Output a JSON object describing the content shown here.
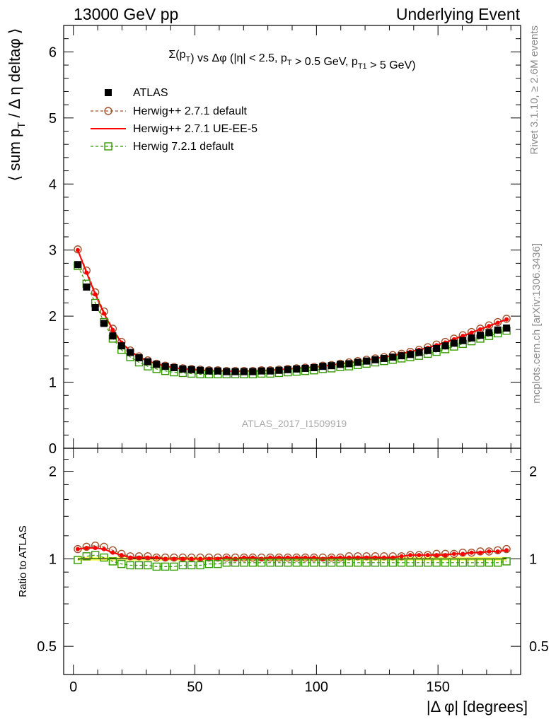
{
  "header": {
    "left": "13000 GeV pp",
    "right": "Underlying Event"
  },
  "side_labels": {
    "rivet": "Rivet 3.1.10, ≥ 2.6M events",
    "mcplots": "mcplots.cern.ch [arXiv:1306.3436]"
  },
  "watermark": "ATLAS_2017_I1509919",
  "colors": {
    "atlas": "#000000",
    "herwigpp_default": "#a0522d",
    "herwigpp_ueee5": "#ff0000",
    "herwig7_default": "#339900",
    "band": "#ffff66"
  },
  "chart_data": [
    {
      "type": "line",
      "panel": "main",
      "title": "Σ(p_T) vs Δφ (|η| < 2.5, p_T > 0.5 GeV, p_T1 > 5 GeV)",
      "xlabel": "|Δ φ| [degrees]",
      "ylabel": "⟨ sum p_T / Δ η deltaφ ⟩",
      "xlim": [
        -4,
        184
      ],
      "ylim": [
        0,
        6.4
      ],
      "yticks": [
        0,
        1,
        2,
        3,
        4,
        5,
        6
      ],
      "xticks": [
        0,
        50,
        100,
        150
      ],
      "legend_position": "top-left",
      "x": [
        1.8,
        5.4,
        9.0,
        12.6,
        16.2,
        19.8,
        23.4,
        27.0,
        30.6,
        34.2,
        37.8,
        41.4,
        45.0,
        48.6,
        52.2,
        55.8,
        59.4,
        63.0,
        66.6,
        70.2,
        73.8,
        77.4,
        81.0,
        84.6,
        88.2,
        91.8,
        95.4,
        99.0,
        102.6,
        106.2,
        109.8,
        113.4,
        117.0,
        120.6,
        124.2,
        127.8,
        131.4,
        135.0,
        138.6,
        142.2,
        145.8,
        149.4,
        153.0,
        156.6,
        160.2,
        163.8,
        167.4,
        171.0,
        174.6,
        178.2
      ],
      "series": [
        {
          "name": "ATLAS",
          "style": "filled-square",
          "values": [
            2.78,
            2.44,
            2.13,
            1.89,
            1.7,
            1.55,
            1.45,
            1.37,
            1.31,
            1.27,
            1.24,
            1.22,
            1.2,
            1.19,
            1.18,
            1.17,
            1.17,
            1.16,
            1.16,
            1.16,
            1.16,
            1.17,
            1.17,
            1.18,
            1.19,
            1.2,
            1.21,
            1.22,
            1.24,
            1.25,
            1.27,
            1.28,
            1.3,
            1.32,
            1.34,
            1.36,
            1.38,
            1.4,
            1.42,
            1.45,
            1.48,
            1.51,
            1.55,
            1.59,
            1.63,
            1.67,
            1.71,
            1.75,
            1.79,
            1.82
          ]
        },
        {
          "name": "Herwig++ 2.7.1 default",
          "style": "dashed-open-circle",
          "values": [
            3.01,
            2.69,
            2.36,
            2.07,
            1.81,
            1.61,
            1.48,
            1.39,
            1.33,
            1.28,
            1.25,
            1.23,
            1.21,
            1.2,
            1.19,
            1.18,
            1.18,
            1.17,
            1.17,
            1.17,
            1.17,
            1.18,
            1.18,
            1.19,
            1.2,
            1.21,
            1.22,
            1.23,
            1.25,
            1.26,
            1.28,
            1.3,
            1.32,
            1.34,
            1.36,
            1.38,
            1.41,
            1.43,
            1.46,
            1.49,
            1.53,
            1.57,
            1.61,
            1.66,
            1.71,
            1.76,
            1.81,
            1.86,
            1.91,
            1.96
          ]
        },
        {
          "name": "Herwig++ 2.7.1 UE-EE-5",
          "style": "solid-line",
          "values": [
            3.0,
            2.66,
            2.33,
            2.04,
            1.79,
            1.6,
            1.47,
            1.38,
            1.32,
            1.28,
            1.24,
            1.22,
            1.2,
            1.19,
            1.18,
            1.17,
            1.17,
            1.17,
            1.16,
            1.17,
            1.17,
            1.17,
            1.18,
            1.19,
            1.2,
            1.21,
            1.22,
            1.23,
            1.24,
            1.26,
            1.28,
            1.29,
            1.31,
            1.33,
            1.36,
            1.38,
            1.4,
            1.43,
            1.46,
            1.49,
            1.52,
            1.56,
            1.6,
            1.65,
            1.7,
            1.75,
            1.8,
            1.85,
            1.9,
            1.95
          ]
        },
        {
          "name": "Herwig 7.2.1 default",
          "style": "dashed-open-square",
          "values": [
            2.76,
            2.49,
            2.2,
            1.91,
            1.66,
            1.49,
            1.38,
            1.3,
            1.24,
            1.2,
            1.17,
            1.15,
            1.14,
            1.13,
            1.12,
            1.12,
            1.12,
            1.12,
            1.12,
            1.12,
            1.12,
            1.13,
            1.13,
            1.14,
            1.15,
            1.16,
            1.17,
            1.18,
            1.2,
            1.21,
            1.23,
            1.24,
            1.26,
            1.28,
            1.3,
            1.32,
            1.34,
            1.36,
            1.38,
            1.4,
            1.43,
            1.46,
            1.5,
            1.54,
            1.58,
            1.62,
            1.66,
            1.7,
            1.74,
            1.78
          ]
        }
      ]
    },
    {
      "type": "line",
      "panel": "ratio",
      "xlabel": "|Δ φ| [degrees]",
      "ylabel": "Ratio to ATLAS",
      "ylim": [
        0.4,
        2.4
      ],
      "log_y": true,
      "yticks": [
        0.5,
        1,
        2
      ],
      "xticks": [
        0,
        50,
        100,
        150
      ],
      "x": [
        1.8,
        5.4,
        9.0,
        12.6,
        16.2,
        19.8,
        23.4,
        27.0,
        30.6,
        34.2,
        37.8,
        41.4,
        45.0,
        48.6,
        52.2,
        55.8,
        59.4,
        63.0,
        66.6,
        70.2,
        73.8,
        77.4,
        81.0,
        84.6,
        88.2,
        91.8,
        95.4,
        99.0,
        102.6,
        106.2,
        109.8,
        113.4,
        117.0,
        120.6,
        124.2,
        127.8,
        131.4,
        135.0,
        138.6,
        142.2,
        145.8,
        149.4,
        153.0,
        156.6,
        160.2,
        163.8,
        167.4,
        171.0,
        174.6,
        178.2
      ],
      "series": [
        {
          "name": "Herwig++ 2.7.1 default",
          "style": "dashed-open-circle",
          "values": [
            1.08,
            1.1,
            1.11,
            1.1,
            1.07,
            1.04,
            1.02,
            1.02,
            1.02,
            1.01,
            1.01,
            1.01,
            1.01,
            1.01,
            1.01,
            1.01,
            1.01,
            1.01,
            1.01,
            1.01,
            1.01,
            1.01,
            1.01,
            1.01,
            1.01,
            1.01,
            1.01,
            1.01,
            1.01,
            1.01,
            1.01,
            1.02,
            1.02,
            1.02,
            1.02,
            1.02,
            1.02,
            1.02,
            1.03,
            1.03,
            1.03,
            1.04,
            1.04,
            1.04,
            1.05,
            1.05,
            1.06,
            1.06,
            1.07,
            1.08
          ]
        },
        {
          "name": "Herwig++ 2.7.1 UE-EE-5",
          "style": "solid-line",
          "values": [
            1.08,
            1.09,
            1.09,
            1.08,
            1.05,
            1.03,
            1.01,
            1.01,
            1.01,
            1.01,
            1.0,
            1.0,
            1.0,
            1.0,
            1.0,
            1.0,
            1.0,
            1.01,
            1.0,
            1.01,
            1.01,
            1.0,
            1.01,
            1.01,
            1.01,
            1.01,
            1.01,
            1.01,
            1.0,
            1.01,
            1.01,
            1.01,
            1.01,
            1.01,
            1.01,
            1.01,
            1.01,
            1.02,
            1.03,
            1.03,
            1.03,
            1.03,
            1.03,
            1.04,
            1.04,
            1.05,
            1.05,
            1.06,
            1.06,
            1.07
          ]
        },
        {
          "name": "Herwig 7.2.1 default",
          "style": "dashed-open-square",
          "values": [
            0.99,
            1.02,
            1.03,
            1.01,
            0.98,
            0.96,
            0.95,
            0.95,
            0.95,
            0.94,
            0.94,
            0.94,
            0.95,
            0.95,
            0.95,
            0.96,
            0.96,
            0.97,
            0.97,
            0.97,
            0.97,
            0.97,
            0.97,
            0.97,
            0.97,
            0.97,
            0.97,
            0.97,
            0.97,
            0.97,
            0.97,
            0.97,
            0.97,
            0.97,
            0.97,
            0.97,
            0.97,
            0.97,
            0.97,
            0.97,
            0.97,
            0.97,
            0.97,
            0.97,
            0.97,
            0.97,
            0.97,
            0.97,
            0.97,
            0.98
          ]
        }
      ]
    }
  ]
}
